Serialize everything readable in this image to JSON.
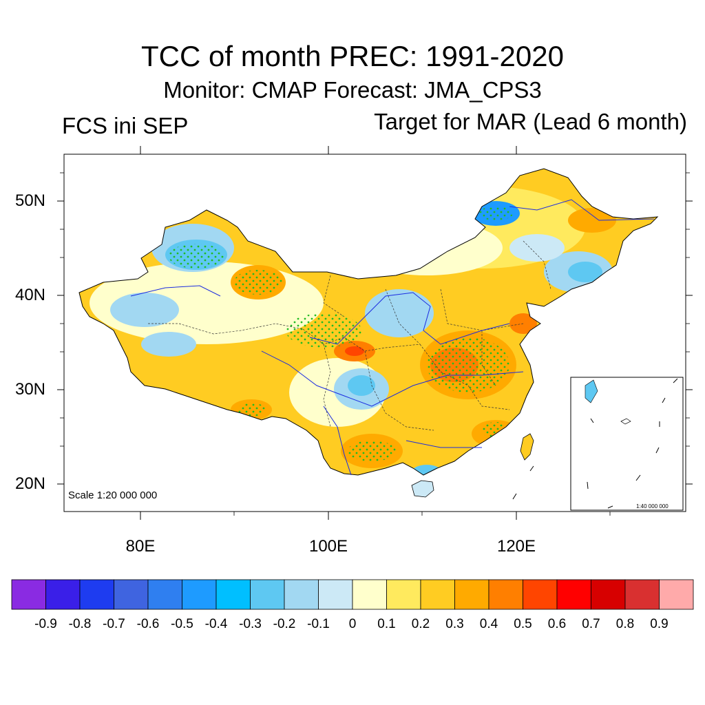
{
  "title": "TCC of month PREC: 1991-2020",
  "subtitle": "Monitor: CMAP   Forecast: JMA_CPS3",
  "left_label": "FCS ini SEP",
  "right_label": "Target for MAR (Lead 6 month)",
  "lat_labels": [
    "50N",
    "40N",
    "30N",
    "20N"
  ],
  "lon_labels": [
    "80E",
    "100E",
    "120E"
  ],
  "scale_text": "Scale 1:20 000 000",
  "inset_scale_text": "1:40 000 000",
  "colorbar": {
    "labels": [
      "-0.9",
      "-0.8",
      "-0.7",
      "-0.6",
      "-0.5",
      "-0.4",
      "-0.3",
      "-0.2",
      "-0.1",
      "0",
      "0.1",
      "0.2",
      "0.3",
      "0.4",
      "0.5",
      "0.6",
      "0.7",
      "0.8",
      "0.9"
    ],
    "colors": [
      "#8a2be2",
      "#3a1fe8",
      "#1e3cf0",
      "#3f64e0",
      "#2f7ff0",
      "#1e9bff",
      "#00bfff",
      "#5ec8f2",
      "#a2d8f2",
      "#cce9f6",
      "#ffffcc",
      "#ffea5e",
      "#ffcc22",
      "#ffaa00",
      "#ff7f00",
      "#ff4500",
      "#ff0000",
      "#d70000",
      "#d93030",
      "#ffaaaa"
    ]
  }
}
